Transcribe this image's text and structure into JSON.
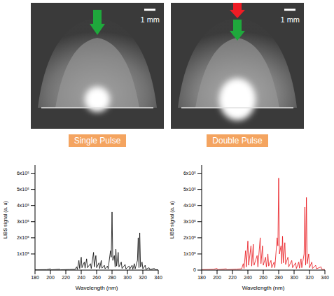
{
  "images": [
    {
      "label": "Single Pulse",
      "scale_bar": "1 mm"
    },
    {
      "label": "Double Pulse",
      "scale_bar": "1 mm"
    }
  ],
  "chart_data": [
    {
      "type": "line",
      "x_label": "Wavelength (nm)",
      "y_label": "LIBS signal (a. u)",
      "color": "#000000",
      "xlim": [
        180,
        340
      ],
      "xticks": [
        180,
        200,
        220,
        240,
        260,
        280,
        300,
        320,
        340
      ],
      "ylim": [
        0,
        650000
      ],
      "yticks": [
        {
          "value": 100000,
          "label": "1x10⁵"
        },
        {
          "value": 200000,
          "label": "2x10⁵"
        },
        {
          "value": 300000,
          "label": "3x10⁵"
        },
        {
          "value": 400000,
          "label": "4x10⁵"
        },
        {
          "value": 500000,
          "label": "5x10⁵"
        },
        {
          "value": 600000,
          "label": "6x10⁵"
        }
      ],
      "x": [
        180,
        195,
        200,
        201,
        212,
        213,
        225,
        232,
        234,
        235,
        237,
        238,
        240,
        241,
        244,
        245,
        247,
        248,
        252,
        253,
        256,
        257,
        259,
        260,
        263,
        264,
        266,
        267,
        270,
        271,
        274,
        275,
        278,
        279,
        280,
        281,
        283,
        284,
        285,
        286,
        288,
        289,
        292,
        293,
        297,
        298,
        302,
        303,
        306,
        307,
        309,
        310,
        313,
        314,
        315,
        316,
        317,
        319,
        320,
        323,
        324,
        328,
        329,
        335,
        336,
        340
      ],
      "values": [
        2000,
        3000,
        8000,
        2000,
        6000,
        2000,
        4000,
        5000,
        20000,
        5000,
        60000,
        10000,
        80000,
        15000,
        50000,
        12000,
        70000,
        15000,
        40000,
        10000,
        110000,
        20000,
        90000,
        15000,
        45000,
        10000,
        60000,
        12000,
        30000,
        8000,
        25000,
        8000,
        120000,
        80000,
        360000,
        60000,
        90000,
        20000,
        130000,
        25000,
        110000,
        20000,
        50000,
        10000,
        35000,
        8000,
        25000,
        6000,
        30000,
        6000,
        40000,
        8000,
        60000,
        200000,
        15000,
        230000,
        20000,
        50000,
        8000,
        30000,
        5000,
        15000,
        4000,
        10000,
        3000,
        2000
      ]
    },
    {
      "type": "line",
      "x_label": "Wavelength (nm)",
      "y_label": "LIBS signal (a. u)",
      "color": "#e8141b",
      "xlim": [
        180,
        340
      ],
      "xticks": [
        180,
        200,
        220,
        240,
        260,
        280,
        300,
        320,
        340
      ],
      "ylim": [
        0,
        650000
      ],
      "yticks": [
        0,
        {
          "value": 100000,
          "label": "1x10⁵"
        },
        {
          "value": 200000,
          "label": "2x10⁵"
        },
        {
          "value": 300000,
          "label": "3x10⁵"
        },
        {
          "value": 400000,
          "label": "4x10⁵"
        },
        {
          "value": 500000,
          "label": "5x10⁵"
        },
        {
          "value": 600000,
          "label": "6x10⁵"
        }
      ],
      "x": [
        180,
        195,
        200,
        201,
        212,
        213,
        225,
        232,
        234,
        235,
        237,
        238,
        240,
        241,
        244,
        245,
        247,
        248,
        252,
        253,
        256,
        257,
        259,
        260,
        263,
        264,
        266,
        267,
        270,
        271,
        274,
        275,
        278,
        279,
        280,
        281,
        283,
        284,
        285,
        286,
        288,
        289,
        292,
        293,
        297,
        298,
        302,
        303,
        306,
        307,
        309,
        310,
        313,
        314,
        315,
        316,
        317,
        319,
        320,
        323,
        324,
        328,
        329,
        335,
        336,
        340
      ],
      "values": [
        3000,
        5000,
        10000,
        3000,
        8000,
        3000,
        6000,
        8000,
        40000,
        10000,
        120000,
        20000,
        180000,
        30000,
        150000,
        25000,
        160000,
        30000,
        90000,
        20000,
        200000,
        40000,
        150000,
        30000,
        80000,
        20000,
        100000,
        25000,
        60000,
        15000,
        50000,
        15000,
        200000,
        150000,
        570000,
        100000,
        150000,
        40000,
        210000,
        45000,
        170000,
        35000,
        80000,
        20000,
        60000,
        15000,
        45000,
        10000,
        50000,
        12000,
        70000,
        15000,
        100000,
        390000,
        30000,
        450000,
        40000,
        100000,
        15000,
        50000,
        10000,
        30000,
        8000,
        20000,
        5000,
        3000
      ]
    }
  ]
}
